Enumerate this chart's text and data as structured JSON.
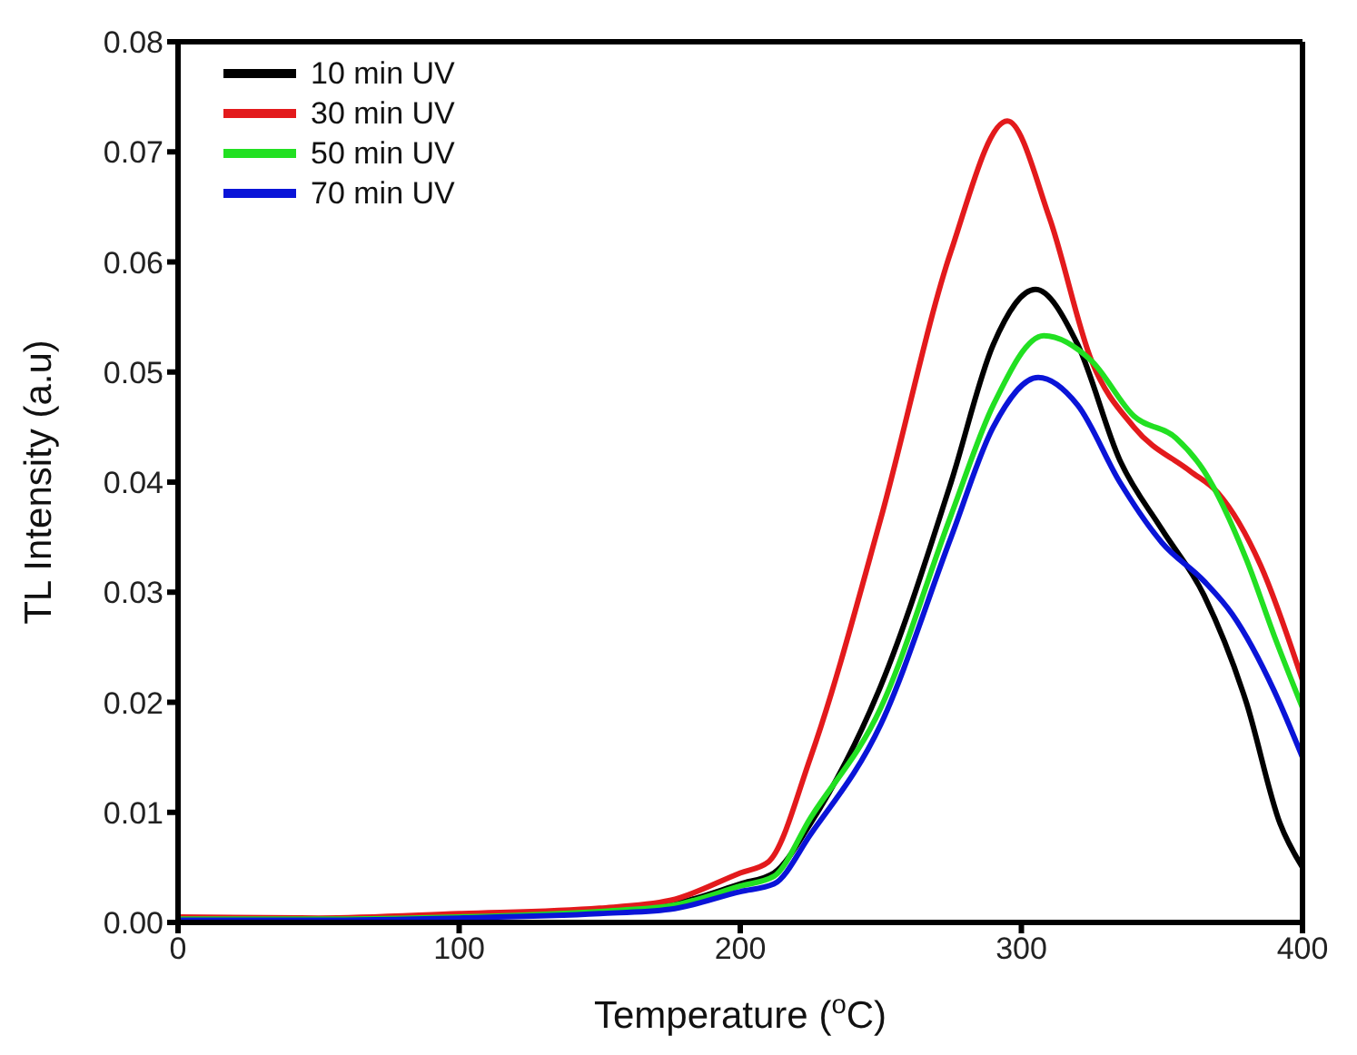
{
  "chart_data": {
    "type": "line",
    "xlabel": "Temperature ($^{o}$C)",
    "ylabel": "TL Intensity (a.u)",
    "xlim": [
      0,
      400
    ],
    "xticks": [
      0,
      100,
      200,
      300,
      400
    ],
    "ylim": [
      0,
      0.08
    ],
    "yticks": [
      {
        "value": 0,
        "label": "0.00"
      },
      {
        "value": 0.01,
        "label": "0.01"
      },
      {
        "value": 0.02,
        "label": "0.02"
      },
      {
        "value": 0.03,
        "label": "0.03"
      },
      {
        "value": 0.04,
        "label": "0.04"
      },
      {
        "value": 0.05,
        "label": "0.05"
      },
      {
        "value": 0.06,
        "label": "0.06"
      },
      {
        "value": 0.07,
        "label": "0.07"
      },
      {
        "value": 0.08,
        "label": "0.08"
      }
    ],
    "legend": "top left",
    "marker": "none",
    "line_style": "solid",
    "series": [
      {
        "name": "10 min UV",
        "color": "#000000",
        "x": [
          0,
          50,
          100,
          150,
          175,
          200,
          212,
          225,
          250,
          275,
          290,
          305,
          320,
          335,
          350,
          365,
          380,
          392,
          400
        ],
        "values": [
          0.0003,
          0.0003,
          0.0005,
          0.001,
          0.0016,
          0.0035,
          0.0045,
          0.009,
          0.0215,
          0.04,
          0.0525,
          0.0575,
          0.0525,
          0.042,
          0.0357,
          0.0297,
          0.02,
          0.009,
          0.005
        ]
      },
      {
        "name": "30 min UV",
        "color": "#e31a1c",
        "x": [
          0,
          50,
          100,
          150,
          175,
          200,
          210,
          225,
          250,
          275,
          295,
          310,
          325,
          340,
          360,
          370,
          385,
          400
        ],
        "values": [
          0.0005,
          0.0004,
          0.0008,
          0.0013,
          0.002,
          0.0045,
          0.0055,
          0.015,
          0.0367,
          0.061,
          0.0728,
          0.064,
          0.051,
          0.045,
          0.041,
          0.039,
          0.0325,
          0.022
        ]
      },
      {
        "name": "50 min UV",
        "color": "#22e022",
        "x": [
          0,
          50,
          100,
          150,
          175,
          200,
          212,
          225,
          250,
          275,
          290,
          308,
          325,
          340,
          355,
          365,
          380,
          390,
          400
        ],
        "values": [
          0.0003,
          0.0003,
          0.0005,
          0.001,
          0.0015,
          0.0033,
          0.0042,
          0.0095,
          0.0195,
          0.037,
          0.047,
          0.0533,
          0.051,
          0.046,
          0.044,
          0.041,
          0.033,
          0.026,
          0.0195
        ]
      },
      {
        "name": "70 min UV",
        "color": "#0a14d8",
        "x": [
          0,
          50,
          100,
          150,
          175,
          200,
          212,
          225,
          250,
          275,
          290,
          306,
          320,
          335,
          350,
          365,
          375,
          390,
          400
        ],
        "values": [
          0.0002,
          0.0002,
          0.0004,
          0.0008,
          0.0012,
          0.0028,
          0.0035,
          0.008,
          0.018,
          0.035,
          0.045,
          0.0495,
          0.047,
          0.04,
          0.0345,
          0.031,
          0.028,
          0.021,
          0.015
        ]
      }
    ]
  }
}
